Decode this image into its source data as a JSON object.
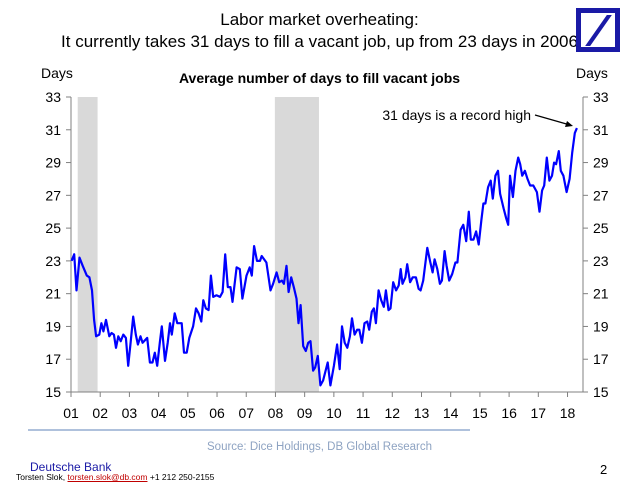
{
  "header": {
    "title_line1": "Labor market overheating:",
    "title_line2": "It currently takes 31 days to fill a vacant job, up from 23 days in 2006",
    "logo": "Deutsche Bank logo"
  },
  "chart_data": {
    "type": "line",
    "title": "Average number of days to fill vacant jobs",
    "ylabel_left": "Days",
    "ylabel_right": "Days",
    "ylim": [
      15,
      33
    ],
    "xlim": [
      2001.0,
      2018.53
    ],
    "yticks": [
      15,
      17,
      19,
      21,
      23,
      25,
      27,
      29,
      31,
      33
    ],
    "xticks": [
      2001,
      2002,
      2003,
      2004,
      2005,
      2006,
      2007,
      2008,
      2009,
      2010,
      2011,
      2012,
      2013,
      2014,
      2015,
      2016,
      2017,
      2018
    ],
    "xtick_labels": [
      "01",
      "02",
      "03",
      "04",
      "05",
      "06",
      "07",
      "08",
      "09",
      "10",
      "11",
      "12",
      "13",
      "14",
      "15",
      "16",
      "17",
      "18"
    ],
    "grid": false,
    "recessions": [
      [
        2001.23,
        2001.91
      ],
      [
        2007.98,
        2009.49
      ]
    ],
    "annotation": "31 days is a record high",
    "series": [
      {
        "name": "Average number of days to fill vacant jobs",
        "color": "#0000ff",
        "x": [
          2001.02,
          2001.11,
          2001.19,
          2001.29,
          2001.4,
          2001.54,
          2001.63,
          2001.72,
          2001.79,
          2001.86,
          2001.97,
          2002.04,
          2002.11,
          2002.2,
          2002.31,
          2002.39,
          2002.47,
          2002.54,
          2002.62,
          2002.7,
          2002.79,
          2002.88,
          2002.96,
          2003.04,
          2003.13,
          2003.22,
          2003.29,
          2003.38,
          2003.45,
          2003.61,
          2003.7,
          2003.79,
          2003.87,
          2003.95,
          2004.04,
          2004.11,
          2004.22,
          2004.31,
          2004.39,
          2004.45,
          2004.55,
          2004.64,
          2004.79,
          2004.87,
          2004.96,
          2005.05,
          2005.18,
          2005.28,
          2005.37,
          2005.46,
          2005.53,
          2005.62,
          2005.71,
          2005.79,
          2005.87,
          2005.98,
          2006.1,
          2006.19,
          2006.28,
          2006.37,
          2006.46,
          2006.53,
          2006.67,
          2006.78,
          2006.87,
          2007.01,
          2007.12,
          2007.19,
          2007.27,
          2007.37,
          2007.47,
          2007.53,
          2007.69,
          2007.83,
          2007.92,
          2008.04,
          2008.13,
          2008.22,
          2008.29,
          2008.38,
          2008.45,
          2008.54,
          2008.63,
          2008.72,
          2008.79,
          2008.86,
          2008.95,
          2009.04,
          2009.12,
          2009.2,
          2009.29,
          2009.36,
          2009.45,
          2009.54,
          2009.63,
          2009.79,
          2009.88,
          2010.0,
          2010.11,
          2010.2,
          2010.28,
          2010.37,
          2010.46,
          2010.55,
          2010.62,
          2010.71,
          2010.8,
          2010.87,
          2010.96,
          2011.05,
          2011.14,
          2011.21,
          2011.3,
          2011.37,
          2011.44,
          2011.53,
          2011.62,
          2011.71,
          2011.78,
          2011.87,
          2011.94,
          2012.03,
          2012.13,
          2012.22,
          2012.29,
          2012.35,
          2012.45,
          2012.51,
          2012.61,
          2012.7,
          2012.81,
          2012.9,
          2012.97,
          2013.06,
          2013.2,
          2013.29,
          2013.38,
          2013.45,
          2013.54,
          2013.63,
          2013.7,
          2013.79,
          2013.86,
          2013.95,
          2014.05,
          2014.16,
          2014.23,
          2014.34,
          2014.43,
          2014.53,
          2014.62,
          2014.69,
          2014.78,
          2014.87,
          2014.96,
          2015.05,
          2015.12,
          2015.19,
          2015.28,
          2015.37,
          2015.44,
          2015.53,
          2015.62,
          2015.69,
          2015.81,
          2015.9,
          2015.97,
          2016.03,
          2016.13,
          2016.22,
          2016.31,
          2016.38,
          2016.45,
          2016.54,
          2016.63,
          2016.72,
          2016.83,
          2016.95,
          2017.04,
          2017.13,
          2017.2,
          2017.29,
          2017.38,
          2017.47,
          2017.54,
          2017.61,
          2017.7,
          2017.77,
          2017.86,
          2017.97,
          2018.07,
          2018.16,
          2018.25,
          2018.32
        ],
        "y": [
          23.0,
          23.4,
          21.2,
          23.2,
          22.7,
          22.1,
          22.0,
          21.2,
          19.4,
          18.4,
          18.5,
          19.2,
          18.7,
          19.4,
          18.4,
          18.6,
          18.5,
          17.7,
          18.4,
          18.1,
          18.5,
          18.3,
          16.6,
          18.0,
          19.6,
          18.5,
          17.9,
          18.4,
          18.0,
          18.3,
          16.8,
          16.8,
          17.4,
          16.6,
          18.0,
          19.0,
          16.9,
          18.0,
          19.2,
          18.5,
          19.8,
          19.2,
          19.2,
          17.4,
          17.4,
          18.3,
          19.0,
          20.1,
          19.8,
          19.3,
          20.6,
          20.1,
          20.0,
          22.1,
          20.8,
          20.9,
          20.8,
          21.1,
          23.4,
          21.4,
          21.4,
          20.5,
          22.6,
          22.5,
          20.7,
          22.1,
          22.6,
          22.1,
          23.9,
          23.0,
          23.0,
          23.3,
          22.9,
          21.2,
          21.6,
          22.3,
          21.7,
          21.8,
          21.6,
          22.7,
          21.1,
          22.0,
          21.4,
          20.7,
          19.2,
          20.3,
          17.8,
          17.5,
          18.0,
          18.1,
          16.3,
          16.5,
          17.2,
          15.4,
          15.7,
          16.8,
          15.4,
          16.6,
          17.9,
          16.4,
          19.0,
          18.0,
          17.7,
          18.4,
          19.5,
          18.5,
          18.8,
          18.8,
          18.0,
          19.2,
          19.3,
          18.8,
          19.9,
          20.1,
          19.2,
          21.2,
          20.6,
          20.2,
          21.2,
          20.0,
          20.1,
          21.7,
          21.2,
          21.5,
          22.5,
          21.6,
          22.0,
          22.8,
          21.7,
          22.0,
          22.0,
          21.3,
          21.2,
          21.8,
          23.8,
          23.0,
          22.3,
          23.1,
          22.5,
          21.6,
          21.8,
          23.6,
          22.7,
          21.8,
          22.2,
          22.9,
          22.9,
          24.9,
          25.2,
          24.2,
          26.0,
          24.3,
          24.3,
          24.8,
          24.0,
          25.5,
          26.5,
          26.5,
          27.5,
          27.9,
          26.8,
          28.2,
          28.5,
          27.1,
          26.2,
          25.6,
          25.2,
          28.2,
          26.9,
          28.5,
          29.3,
          28.9,
          28.2,
          28.5,
          28.0,
          27.6,
          27.6,
          27.2,
          26.0,
          27.3,
          27.6,
          29.3,
          27.9,
          28.2,
          29.0,
          28.9,
          29.7,
          28.5,
          28.2,
          27.2,
          28.0,
          29.6,
          30.8,
          31.1
        ]
      }
    ],
    "source": "Source: Dice Holdings, DB Global Research"
  },
  "footer": {
    "brand": "Deutsche Bank",
    "author": "Torsten Slok,",
    "email": "torsten.slok@db.com",
    "phone": "+1 212 250-2155",
    "page_number": "2"
  }
}
